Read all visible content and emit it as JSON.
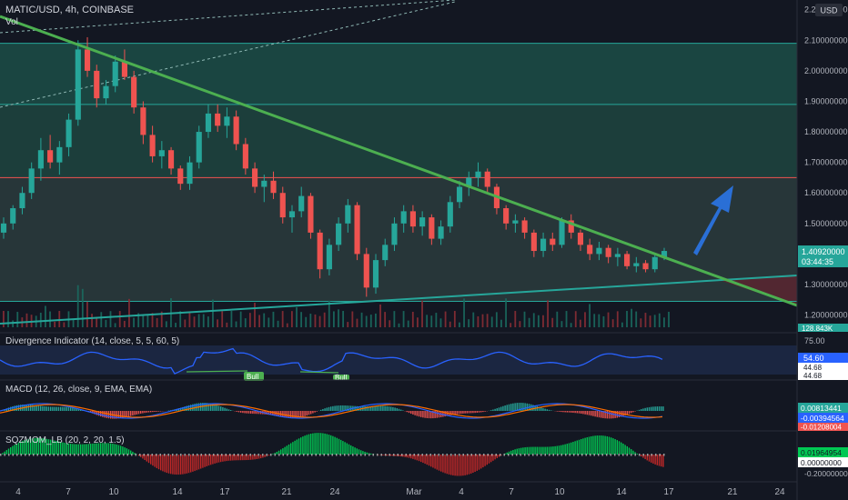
{
  "header": {
    "title": "MATIC/USD, 4h, COINBASE",
    "vol_label": "Vol",
    "currency": "USD"
  },
  "colors": {
    "background": "#131722",
    "up": "#26a69a",
    "down": "#ef5350",
    "trendline": "#4caf50",
    "support_line": "#26a69a",
    "rsi_line": "#2962ff",
    "macd_line": "#2962ff",
    "signal_line": "#ff6d00",
    "arrow": "#2a6fd6"
  },
  "chart_data": {
    "type": "candlestick",
    "price_axis": {
      "ticks": [
        "2.20000000",
        "2.10000000",
        "2.00000000",
        "1.90000000",
        "1.80000000",
        "1.70000000",
        "1.60000000",
        "1.50000000",
        "1.30000000",
        "1.20000000"
      ],
      "ylim": [
        1.16,
        2.22
      ]
    },
    "x_axis": {
      "ticks": [
        "4",
        "7",
        "10",
        "14",
        "17",
        "21",
        "24",
        "Mar",
        "4",
        "7",
        "10",
        "14",
        "17",
        "21",
        "24"
      ]
    },
    "last_price": "1.40920000",
    "countdown": "03:44:35",
    "volume_label": "128.843K",
    "horizontal_levels": [
      2.09,
      1.89,
      1.65,
      1.245
    ],
    "candles": [
      {
        "o": 1.47,
        "h": 1.52,
        "l": 1.45,
        "c": 1.5
      },
      {
        "o": 1.5,
        "h": 1.56,
        "l": 1.48,
        "c": 1.55
      },
      {
        "o": 1.55,
        "h": 1.62,
        "l": 1.53,
        "c": 1.6
      },
      {
        "o": 1.6,
        "h": 1.7,
        "l": 1.58,
        "c": 1.68
      },
      {
        "o": 1.68,
        "h": 1.78,
        "l": 1.64,
        "c": 1.74
      },
      {
        "o": 1.74,
        "h": 1.79,
        "l": 1.68,
        "c": 1.7
      },
      {
        "o": 1.7,
        "h": 1.77,
        "l": 1.66,
        "c": 1.75
      },
      {
        "o": 1.75,
        "h": 1.86,
        "l": 1.72,
        "c": 1.84
      },
      {
        "o": 1.84,
        "h": 2.1,
        "l": 1.82,
        "c": 2.07
      },
      {
        "o": 2.07,
        "h": 2.11,
        "l": 1.98,
        "c": 2.0
      },
      {
        "o": 2.0,
        "h": 2.02,
        "l": 1.88,
        "c": 1.91
      },
      {
        "o": 1.91,
        "h": 1.97,
        "l": 1.89,
        "c": 1.95
      },
      {
        "o": 1.95,
        "h": 2.05,
        "l": 1.93,
        "c": 2.03
      },
      {
        "o": 2.03,
        "h": 2.07,
        "l": 1.97,
        "c": 1.98
      },
      {
        "o": 1.98,
        "h": 2.0,
        "l": 1.86,
        "c": 1.88
      },
      {
        "o": 1.88,
        "h": 1.9,
        "l": 1.76,
        "c": 1.79
      },
      {
        "o": 1.79,
        "h": 1.82,
        "l": 1.7,
        "c": 1.72
      },
      {
        "o": 1.72,
        "h": 1.77,
        "l": 1.68,
        "c": 1.74
      },
      {
        "o": 1.74,
        "h": 1.75,
        "l": 1.66,
        "c": 1.68
      },
      {
        "o": 1.68,
        "h": 1.69,
        "l": 1.61,
        "c": 1.63
      },
      {
        "o": 1.63,
        "h": 1.72,
        "l": 1.61,
        "c": 1.7
      },
      {
        "o": 1.7,
        "h": 1.82,
        "l": 1.68,
        "c": 1.8
      },
      {
        "o": 1.8,
        "h": 1.89,
        "l": 1.78,
        "c": 1.86
      },
      {
        "o": 1.86,
        "h": 1.89,
        "l": 1.8,
        "c": 1.82
      },
      {
        "o": 1.82,
        "h": 1.88,
        "l": 1.78,
        "c": 1.85
      },
      {
        "o": 1.85,
        "h": 1.87,
        "l": 1.74,
        "c": 1.76
      },
      {
        "o": 1.76,
        "h": 1.78,
        "l": 1.66,
        "c": 1.68
      },
      {
        "o": 1.68,
        "h": 1.7,
        "l": 1.6,
        "c": 1.62
      },
      {
        "o": 1.62,
        "h": 1.66,
        "l": 1.57,
        "c": 1.64
      },
      {
        "o": 1.64,
        "h": 1.67,
        "l": 1.58,
        "c": 1.6
      },
      {
        "o": 1.6,
        "h": 1.62,
        "l": 1.5,
        "c": 1.52
      },
      {
        "o": 1.52,
        "h": 1.56,
        "l": 1.47,
        "c": 1.54
      },
      {
        "o": 1.54,
        "h": 1.62,
        "l": 1.52,
        "c": 1.59
      },
      {
        "o": 1.59,
        "h": 1.6,
        "l": 1.45,
        "c": 1.47
      },
      {
        "o": 1.47,
        "h": 1.48,
        "l": 1.32,
        "c": 1.35
      },
      {
        "o": 1.35,
        "h": 1.45,
        "l": 1.33,
        "c": 1.43
      },
      {
        "o": 1.43,
        "h": 1.52,
        "l": 1.41,
        "c": 1.5
      },
      {
        "o": 1.5,
        "h": 1.58,
        "l": 1.47,
        "c": 1.56
      },
      {
        "o": 1.56,
        "h": 1.57,
        "l": 1.38,
        "c": 1.4
      },
      {
        "o": 1.4,
        "h": 1.42,
        "l": 1.26,
        "c": 1.29
      },
      {
        "o": 1.29,
        "h": 1.4,
        "l": 1.27,
        "c": 1.38
      },
      {
        "o": 1.38,
        "h": 1.45,
        "l": 1.36,
        "c": 1.43
      },
      {
        "o": 1.43,
        "h": 1.52,
        "l": 1.41,
        "c": 1.5
      },
      {
        "o": 1.5,
        "h": 1.56,
        "l": 1.47,
        "c": 1.54
      },
      {
        "o": 1.54,
        "h": 1.56,
        "l": 1.47,
        "c": 1.49
      },
      {
        "o": 1.49,
        "h": 1.54,
        "l": 1.46,
        "c": 1.52
      },
      {
        "o": 1.52,
        "h": 1.53,
        "l": 1.43,
        "c": 1.45
      },
      {
        "o": 1.45,
        "h": 1.51,
        "l": 1.43,
        "c": 1.49
      },
      {
        "o": 1.49,
        "h": 1.59,
        "l": 1.47,
        "c": 1.57
      },
      {
        "o": 1.57,
        "h": 1.64,
        "l": 1.55,
        "c": 1.62
      },
      {
        "o": 1.62,
        "h": 1.67,
        "l": 1.59,
        "c": 1.65
      },
      {
        "o": 1.65,
        "h": 1.7,
        "l": 1.62,
        "c": 1.67
      },
      {
        "o": 1.67,
        "h": 1.68,
        "l": 1.6,
        "c": 1.62
      },
      {
        "o": 1.62,
        "h": 1.63,
        "l": 1.53,
        "c": 1.55
      },
      {
        "o": 1.55,
        "h": 1.56,
        "l": 1.48,
        "c": 1.5
      },
      {
        "o": 1.5,
        "h": 1.53,
        "l": 1.47,
        "c": 1.51
      },
      {
        "o": 1.51,
        "h": 1.52,
        "l": 1.45,
        "c": 1.47
      },
      {
        "o": 1.47,
        "h": 1.48,
        "l": 1.39,
        "c": 1.41
      },
      {
        "o": 1.41,
        "h": 1.47,
        "l": 1.39,
        "c": 1.45
      },
      {
        "o": 1.45,
        "h": 1.47,
        "l": 1.41,
        "c": 1.43
      },
      {
        "o": 1.43,
        "h": 1.52,
        "l": 1.42,
        "c": 1.51
      },
      {
        "o": 1.51,
        "h": 1.53,
        "l": 1.45,
        "c": 1.47
      },
      {
        "o": 1.47,
        "h": 1.48,
        "l": 1.41,
        "c": 1.43
      },
      {
        "o": 1.43,
        "h": 1.45,
        "l": 1.38,
        "c": 1.4
      },
      {
        "o": 1.4,
        "h": 1.44,
        "l": 1.38,
        "c": 1.42
      },
      {
        "o": 1.42,
        "h": 1.43,
        "l": 1.37,
        "c": 1.39
      },
      {
        "o": 1.39,
        "h": 1.42,
        "l": 1.36,
        "c": 1.4
      },
      {
        "o": 1.4,
        "h": 1.41,
        "l": 1.35,
        "c": 1.36
      },
      {
        "o": 1.36,
        "h": 1.39,
        "l": 1.34,
        "c": 1.37
      },
      {
        "o": 1.37,
        "h": 1.38,
        "l": 1.34,
        "c": 1.35
      },
      {
        "o": 1.35,
        "h": 1.4,
        "l": 1.34,
        "c": 1.39
      },
      {
        "o": 1.39,
        "h": 1.42,
        "l": 1.38,
        "c": 1.41
      }
    ]
  },
  "divergence": {
    "title": "Divergence Indicator (14, close, 5, 5, 60, 5)",
    "ticks": [
      "75.00"
    ],
    "value_badge": "54.60",
    "badges": [
      "44.68",
      "44.68"
    ],
    "bull_label": "Bull",
    "bull_label_2": "Bull"
  },
  "macd": {
    "title": "MACD (12, 26, close, 9, EMA, EMA)",
    "badges": [
      "0.00813441",
      "-0.00394564",
      "-0.01208004"
    ]
  },
  "sqzmom": {
    "title": "SQZMOM_LB (20, 2, 20, 1.5)",
    "badges": [
      "0.01964954",
      "0.00000000"
    ],
    "ticks": [
      "-0.20000000"
    ]
  }
}
